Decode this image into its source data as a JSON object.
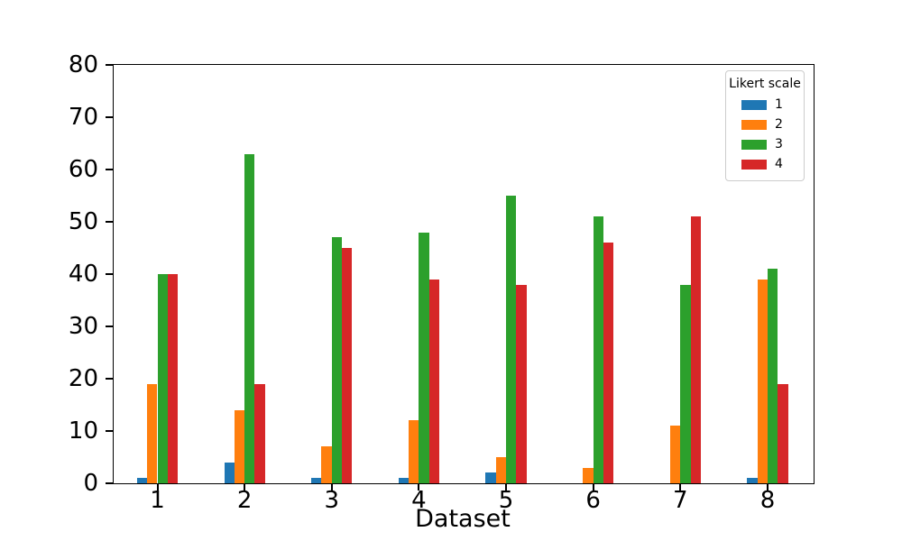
{
  "chart_data": {
    "type": "bar",
    "title": "",
    "xlabel": "Dataset",
    "ylabel": "",
    "categories": [
      "1",
      "2",
      "3",
      "4",
      "5",
      "6",
      "7",
      "8"
    ],
    "series": [
      {
        "name": "1",
        "color": "#1f77b4",
        "values": [
          1,
          4,
          1,
          1,
          2,
          0,
          0,
          1
        ]
      },
      {
        "name": "2",
        "color": "#ff7f0e",
        "values": [
          19,
          14,
          7,
          12,
          5,
          3,
          11,
          39
        ]
      },
      {
        "name": "3",
        "color": "#2ca02c",
        "values": [
          40,
          63,
          47,
          48,
          55,
          51,
          38,
          41
        ]
      },
      {
        "name": "4",
        "color": "#d62728",
        "values": [
          40,
          19,
          45,
          39,
          38,
          46,
          51,
          19
        ]
      }
    ],
    "ylim": [
      0,
      80
    ],
    "yticks": [
      0,
      10,
      20,
      30,
      40,
      50,
      60,
      70,
      80
    ],
    "grid": false,
    "legend": {
      "title": "Likert scale",
      "position": "upper right"
    }
  }
}
